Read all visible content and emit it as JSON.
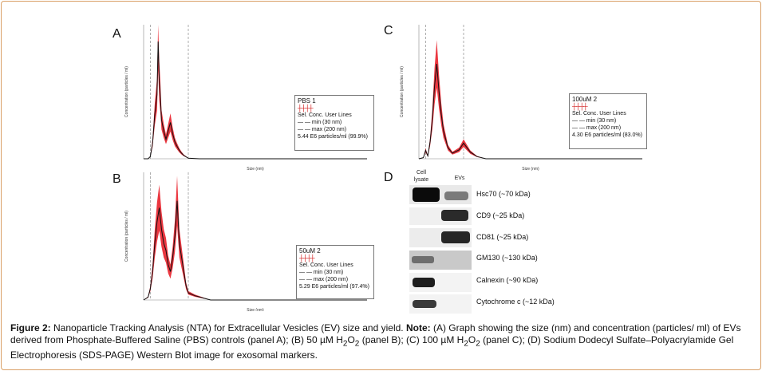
{
  "panels": {
    "A": {
      "letter": "A",
      "legend": {
        "title": "PBS 1",
        "sel": "Sel. Conc. User Lines",
        "min": "min (30 nm)",
        "max": "max (200 nm)",
        "result": "5.44 E6 particles/ml (99.9%)"
      },
      "xlabel": "Size (nm)",
      "ylabel": "Concentration (particles / ml)"
    },
    "B": {
      "letter": "B",
      "legend": {
        "title": "50uM 2",
        "sel": "Sel. Conc. User Lines",
        "min": "min (30 nm)",
        "max": "max (200 nm)",
        "result": "5.29 E6 particles/ml (97.4%)"
      },
      "xlabel": "Size (nm)",
      "ylabel": "Concentration (particles / ml)"
    },
    "C": {
      "letter": "C",
      "legend": {
        "title": "100uM 2",
        "sel": "Sel. Conc. User Lines",
        "min": "min (30 nm)",
        "max": "max (200 nm)",
        "result": "4.30 E6 particles/ml (83.0%)"
      },
      "xlabel": "Size (nm)",
      "ylabel": "Concentration (particles / ml)"
    },
    "D": {
      "letter": "D"
    }
  },
  "western": {
    "col_cell": "Cell lysate",
    "col_evs": "EVs",
    "markers": [
      "Hsc70 (~70 kDa)",
      "CD9 (~25 kDa)",
      "CD81 (~25 kDa)",
      "GM130 (~130 kDa)",
      "Calnexin (~90 kDa)",
      "Cytochrome c (~12 kDa)"
    ]
  },
  "caption": {
    "fig": "Figure 2:",
    "main": " Nanoparticle Tracking Analysis (NTA) for Extracellular Vesicles (EV) size and yield.",
    "note": " Note:",
    "rest1": " (A) Graph showing the size (nm) and concentration (particles/ ml) of EVs derived from Phosphate-Buffered Saline (PBS) controls (panel A); (B) 50 µM H",
    "sub2a": "2",
    "o_a": "O",
    "sub2b": "2",
    "rest2": " (panel B); (C) 100 µM H",
    "sub2c": "2",
    "o_b": "O",
    "sub2d": "2",
    "rest3": " (panel C); (D) Sodium Dodecyl Sulfate–Polyacrylamide Gel Electrophoresis (SDS-PAGE) Western Blot image for exosomal markers."
  },
  "chart_data": [
    {
      "type": "line",
      "panel": "A",
      "title": "",
      "xlabel": "Size (nm)",
      "ylabel": "Concentration (particles / ml)",
      "xlim": [
        0,
        1000
      ],
      "x": [
        0,
        20,
        30,
        40,
        50,
        60,
        65,
        70,
        75,
        80,
        90,
        100,
        110,
        120,
        130,
        140,
        150,
        160,
        170,
        180,
        200,
        250,
        300,
        1000
      ],
      "series": [
        {
          "values": [
            0,
            0,
            0.4,
            2.8,
            8,
            11.5,
            21,
            14,
            11,
            7,
            5,
            3.5,
            5,
            6.5,
            4.5,
            3,
            2.2,
            1.5,
            1,
            0.6,
            0.1,
            0,
            0,
            0
          ]
        }
      ],
      "ylim": [
        0,
        24
      ]
    },
    {
      "type": "line",
      "panel": "B",
      "title": "",
      "xlabel": "Size (nm)",
      "ylabel": "Concentration (particles / ml)",
      "xlim": [
        0,
        1000
      ],
      "x": [
        0,
        20,
        30,
        40,
        50,
        60,
        70,
        80,
        90,
        100,
        110,
        120,
        130,
        140,
        150,
        160,
        170,
        180,
        190,
        200,
        230,
        300,
        1000
      ],
      "series": [
        {
          "values": [
            0,
            0.2,
            0.8,
            2,
            4,
            5.5,
            6.5,
            5,
            4,
            3.5,
            2.5,
            2,
            3,
            4.5,
            7,
            4,
            3,
            2,
            1,
            0.5,
            0.3,
            0,
            0
          ]
        }
      ],
      "ylim": [
        0,
        9
      ]
    },
    {
      "type": "line",
      "panel": "C",
      "title": "",
      "xlabel": "Size (nm)",
      "ylabel": "Concentration (particles / ml)",
      "xlim": [
        0,
        1000
      ],
      "x": [
        0,
        20,
        30,
        40,
        50,
        60,
        70,
        80,
        90,
        100,
        110,
        130,
        150,
        180,
        200,
        230,
        260,
        300,
        1000
      ],
      "series": [
        {
          "values": [
            0,
            0.2,
            1.5,
            0.5,
            3,
            7,
            13,
            17,
            12,
            8,
            5,
            2,
            1,
            1.6,
            2.8,
            1.2,
            0.4,
            0,
            0
          ]
        }
      ],
      "ylim": [
        0,
        24
      ]
    }
  ],
  "colors": {
    "trace": "#111111",
    "band": "#e8141e",
    "frame": "#d9a066",
    "dashed": "#999999"
  }
}
